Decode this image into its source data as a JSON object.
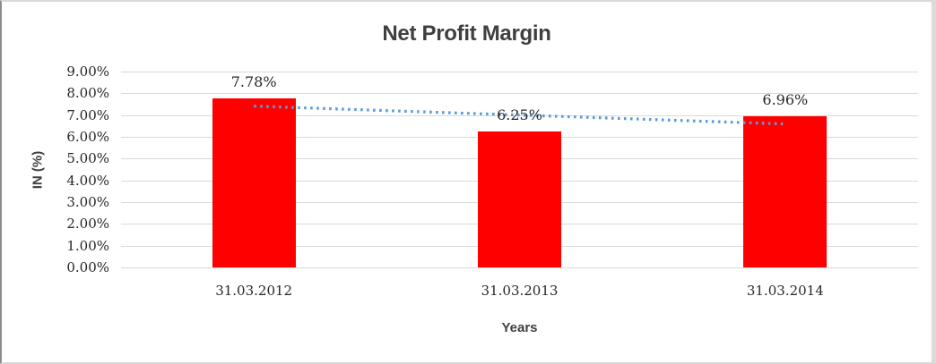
{
  "chart_data": {
    "type": "bar",
    "title": "Net Profit Margin",
    "xlabel": "Years",
    "ylabel": "IN (%)",
    "categories": [
      "31.03.2012",
      "31.03.2013",
      "31.03.2014"
    ],
    "values": [
      7.78,
      6.25,
      6.96
    ],
    "data_labels": [
      "7.78%",
      "6.25%",
      "6.96%"
    ],
    "ylim": [
      0,
      9
    ],
    "ytick_step": 1,
    "ytick_labels": [
      "0.00%",
      "1.00%",
      "2.00%",
      "3.00%",
      "4.00%",
      "5.00%",
      "6.00%",
      "7.00%",
      "8.00%",
      "9.00%"
    ],
    "grid": true,
    "legend": "none",
    "trendline": {
      "type": "linear",
      "style": "dotted",
      "start_value": 7.41,
      "end_value": 6.59
    },
    "colors": {
      "bar": "#FF0000",
      "trendline": "#5B9BD5",
      "gridline": "#D9D9D9",
      "title_text": "#3F3F3F",
      "tick_text": "#262626"
    }
  }
}
